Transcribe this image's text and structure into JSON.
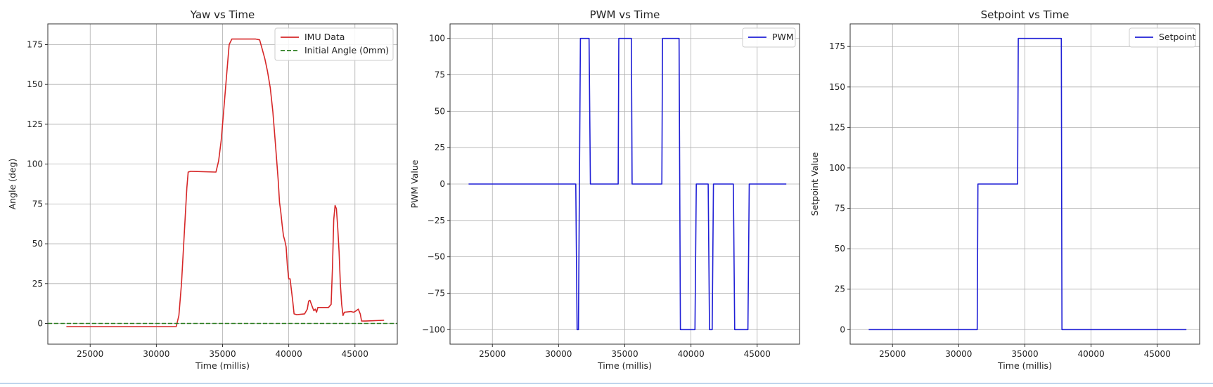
{
  "figure": {
    "accent_rule_color": "#7aa7d8"
  },
  "chart_data": [
    {
      "id": "yaw",
      "type": "line",
      "title": "Yaw vs Time",
      "xlabel": "Time (millis)",
      "ylabel": "Angle (deg)",
      "xlim": [
        21800,
        48200
      ],
      "ylim": [
        -13,
        188
      ],
      "xticks": [
        25000,
        30000,
        35000,
        40000,
        45000
      ],
      "yticks": [
        0,
        25,
        50,
        75,
        100,
        125,
        150,
        175
      ],
      "grid": true,
      "legend_position": "top-right",
      "series": [
        {
          "name": "IMU Data",
          "color": "#d62728",
          "dash": "solid",
          "points": [
            [
              23200,
              -2
            ],
            [
              31500,
              -2
            ],
            [
              31700,
              5
            ],
            [
              31900,
              25
            ],
            [
              32100,
              55
            ],
            [
              32300,
              85
            ],
            [
              32400,
              95
            ],
            [
              32600,
              95.5
            ],
            [
              34500,
              95
            ],
            [
              34700,
              102
            ],
            [
              34900,
              115
            ],
            [
              35100,
              135
            ],
            [
              35300,
              155
            ],
            [
              35500,
              175
            ],
            [
              35700,
              178.5
            ],
            [
              36500,
              178.5
            ],
            [
              37500,
              178.5
            ],
            [
              37800,
              178
            ],
            [
              38000,
              172
            ],
            [
              38200,
              166
            ],
            [
              38400,
              158
            ],
            [
              38600,
              148
            ],
            [
              38800,
              133
            ],
            [
              39000,
              112
            ],
            [
              39200,
              90
            ],
            [
              39300,
              76
            ],
            [
              39400,
              70
            ],
            [
              39500,
              62
            ],
            [
              39600,
              55
            ],
            [
              39700,
              52
            ],
            [
              39800,
              48
            ],
            [
              39900,
              36
            ],
            [
              40000,
              28
            ],
            [
              40100,
              28
            ],
            [
              40300,
              14
            ],
            [
              40400,
              6
            ],
            [
              40600,
              5.5
            ],
            [
              41200,
              6
            ],
            [
              41400,
              9
            ],
            [
              41500,
              14
            ],
            [
              41600,
              14.5
            ],
            [
              41800,
              10
            ],
            [
              41900,
              8
            ],
            [
              42000,
              9
            ],
            [
              42100,
              7
            ],
            [
              42200,
              10
            ],
            [
              42600,
              10
            ],
            [
              43000,
              10
            ],
            [
              43200,
              12
            ],
            [
              43300,
              35
            ],
            [
              43400,
              65
            ],
            [
              43500,
              74
            ],
            [
              43600,
              72
            ],
            [
              43700,
              60
            ],
            [
              43800,
              45
            ],
            [
              43900,
              25
            ],
            [
              44000,
              12
            ],
            [
              44100,
              5
            ],
            [
              44200,
              7
            ],
            [
              44700,
              7.5
            ],
            [
              44900,
              7
            ],
            [
              45100,
              8
            ],
            [
              45250,
              9
            ],
            [
              45400,
              6
            ],
            [
              45500,
              1.5
            ],
            [
              45800,
              1.5
            ],
            [
              47200,
              2
            ]
          ]
        },
        {
          "name": "Initial Angle (0mm)",
          "color": "#2a7d1f",
          "dash": "dashed",
          "points": [
            [
              21800,
              0
            ],
            [
              48200,
              0
            ]
          ]
        }
      ]
    },
    {
      "id": "pwm",
      "type": "line",
      "title": "PWM vs Time",
      "xlabel": "Time (millis)",
      "ylabel": "PWM Value",
      "xlim": [
        21800,
        48200
      ],
      "ylim": [
        -110,
        110
      ],
      "xticks": [
        25000,
        30000,
        35000,
        40000,
        45000
      ],
      "yticks": [
        -100,
        -75,
        -50,
        -25,
        0,
        25,
        50,
        75,
        100
      ],
      "grid": true,
      "legend_position": "top-right",
      "series": [
        {
          "name": "PWM",
          "color": "#1f1fd6",
          "dash": "solid",
          "points": [
            [
              23200,
              0
            ],
            [
              31300,
              0
            ],
            [
              31400,
              -100
            ],
            [
              31500,
              -100
            ],
            [
              31650,
              100
            ],
            [
              32300,
              100
            ],
            [
              32400,
              0
            ],
            [
              34500,
              0
            ],
            [
              34550,
              100
            ],
            [
              35500,
              100
            ],
            [
              35550,
              0
            ],
            [
              37800,
              0
            ],
            [
              37850,
              100
            ],
            [
              39100,
              100
            ],
            [
              39200,
              -100
            ],
            [
              40300,
              -100
            ],
            [
              40400,
              0
            ],
            [
              41300,
              0
            ],
            [
              41400,
              -100
            ],
            [
              41600,
              -100
            ],
            [
              41700,
              0
            ],
            [
              43200,
              0
            ],
            [
              43300,
              -100
            ],
            [
              44300,
              -100
            ],
            [
              44400,
              0
            ],
            [
              47200,
              0
            ]
          ]
        }
      ]
    },
    {
      "id": "setpoint",
      "type": "line",
      "title": "Setpoint vs Time",
      "xlabel": "Time (millis)",
      "ylabel": "Setpoint Value",
      "xlim": [
        21800,
        48200
      ],
      "ylim": [
        -9,
        189
      ],
      "xticks": [
        25000,
        30000,
        35000,
        40000,
        45000
      ],
      "yticks": [
        0,
        25,
        50,
        75,
        100,
        125,
        150,
        175
      ],
      "grid": true,
      "legend_position": "top-right",
      "series": [
        {
          "name": "Setpoint",
          "color": "#1f1fd6",
          "dash": "solid",
          "points": [
            [
              23200,
              0
            ],
            [
              31400,
              0
            ],
            [
              31450,
              90
            ],
            [
              34450,
              90
            ],
            [
              34500,
              180
            ],
            [
              37750,
              180
            ],
            [
              37800,
              0
            ],
            [
              47200,
              0
            ]
          ]
        }
      ]
    }
  ]
}
